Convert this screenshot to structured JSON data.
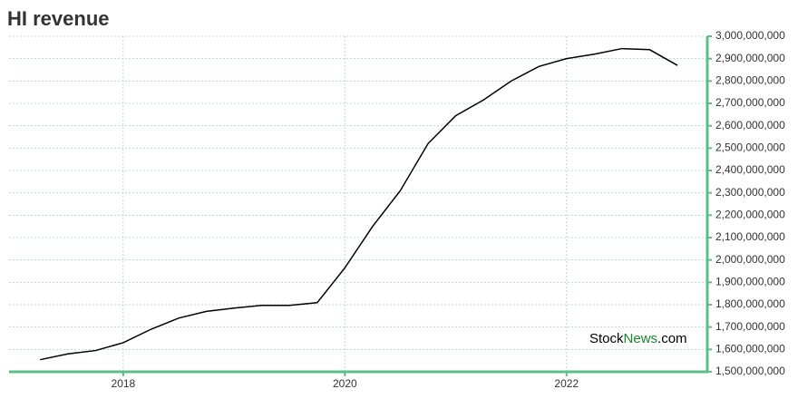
{
  "chart_data": {
    "type": "line",
    "title": "HI revenue",
    "watermark": [
      "Stock",
      "News",
      ".com"
    ],
    "x": [
      2017.25,
      2017.5,
      2017.75,
      2018.0,
      2018.25,
      2018.5,
      2018.75,
      2019.0,
      2019.25,
      2019.5,
      2019.75,
      2020.0,
      2020.25,
      2020.5,
      2020.75,
      2021.0,
      2021.25,
      2021.5,
      2021.75,
      2022.0,
      2022.25,
      2022.5,
      2022.75,
      2023.0
    ],
    "series": [
      {
        "color": "#000000",
        "values": [
          1554000000,
          1580000000,
          1595000000,
          1630000000,
          1690000000,
          1740000000,
          1770000000,
          1785000000,
          1797000000,
          1797000000,
          1809000000,
          1965000000,
          2150000000,
          2310000000,
          2520000000,
          2645000000,
          2715000000,
          2800000000,
          2865000000,
          2900000000,
          2920000000,
          2945000000,
          2940000000,
          2870000000
        ]
      }
    ],
    "xlim": [
      2016.97,
      2023.27
    ],
    "xticks": [
      2018,
      2020,
      2022
    ],
    "ylim": [
      1500000000,
      3000000000
    ],
    "yticks": [
      {
        "value": 1500000000,
        "label": "1,500,000,000"
      },
      {
        "value": 1600000000,
        "label": "1,600,000,000"
      },
      {
        "value": 1700000000,
        "label": "1,700,000,000"
      },
      {
        "value": 1800000000,
        "label": "1,800,000,000"
      },
      {
        "value": 1900000000,
        "label": "1,900,000,000"
      },
      {
        "value": 2000000000,
        "label": "2,000,000,000"
      },
      {
        "value": 2100000000,
        "label": "2,100,000,000"
      },
      {
        "value": 2200000000,
        "label": "2,200,000,000"
      },
      {
        "value": 2300000000,
        "label": "2,300,000,000"
      },
      {
        "value": 2400000000,
        "label": "2,400,000,000"
      },
      {
        "value": 2500000000,
        "label": "2,500,000,000"
      },
      {
        "value": 2600000000,
        "label": "2,600,000,000"
      },
      {
        "value": 2700000000,
        "label": "2,700,000,000"
      },
      {
        "value": 2800000000,
        "label": "2,800,000,000"
      },
      {
        "value": 2900000000,
        "label": "2,900,000,000"
      },
      {
        "value": 3000000000,
        "label": "3,000,000,000"
      }
    ],
    "grid": true,
    "axis_color": "#5cbf87"
  }
}
